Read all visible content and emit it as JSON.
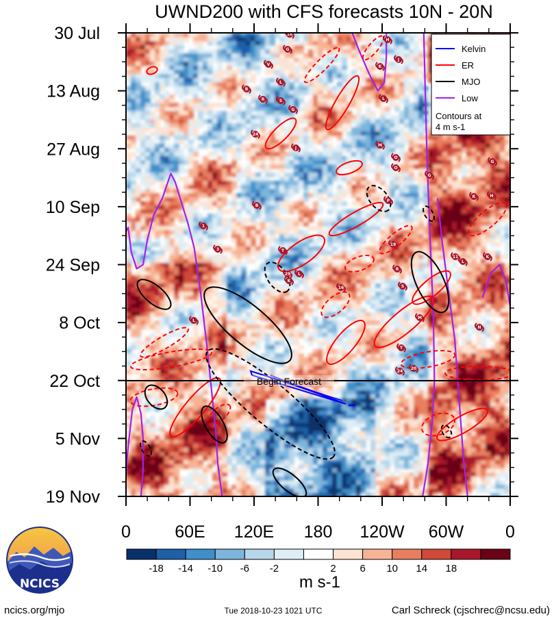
{
  "chart_data": {
    "type": "heatmap",
    "title": "UWND200 with CFS forecasts  10N - 20N",
    "y_axis": {
      "ticks": [
        "30 Jul",
        "13 Aug",
        "27 Aug",
        "10 Sep",
        "24 Sep",
        "8 Oct",
        "22 Oct",
        "5 Nov",
        "19 Nov"
      ],
      "range_days": [
        0,
        112
      ]
    },
    "x_axis": {
      "ticks": [
        "0",
        "60E",
        "120E",
        "180",
        "120W",
        "60W",
        "0"
      ],
      "range_deg": [
        0,
        360
      ]
    },
    "forecast_marker": {
      "label": "Begin Forecast",
      "date": "22 Oct"
    },
    "legend": {
      "placement": "top-right",
      "entries": [
        {
          "name": "Kelvin",
          "color": "#0000ff"
        },
        {
          "name": "ER",
          "color": "#ff0000"
        },
        {
          "name": "MJO",
          "color": "#000000"
        },
        {
          "name": "Low",
          "color": "#a020f0"
        }
      ],
      "note": "Contours at\n4 m s-1"
    },
    "colorbar": {
      "unit": "m s-1",
      "labels": [
        "-18",
        "-14",
        "-10",
        "-6",
        "-2",
        "2",
        "6",
        "10",
        "14",
        "18"
      ],
      "colors": [
        "#08306b",
        "#1f5fa8",
        "#3f8fc9",
        "#7db5dc",
        "#b8d6ea",
        "#dfeef6",
        "#ffffff",
        "#fde3d1",
        "#f7b495",
        "#e87f5f",
        "#cf4a38",
        "#a8172a",
        "#6b0216"
      ]
    },
    "contours": [
      {
        "type": "Low",
        "points": [
          [
            0,
            48
          ],
          [
            2,
            47
          ],
          [
            5,
            53
          ],
          [
            10,
            57
          ],
          [
            16,
            56
          ],
          [
            20,
            50
          ],
          [
            26,
            44
          ],
          [
            34,
            40
          ],
          [
            42,
            34
          ],
          [
            46,
            36
          ],
          [
            52,
            41
          ],
          [
            58,
            46
          ],
          [
            64,
            52
          ],
          [
            70,
            63
          ],
          [
            76,
            76
          ],
          [
            80,
            86
          ],
          [
            84,
            96
          ],
          [
            86,
            104
          ],
          [
            88,
            108
          ],
          [
            90,
            112
          ]
        ]
      },
      {
        "type": "Low",
        "points": [
          [
            -2,
            112
          ],
          [
            2,
            100
          ],
          [
            6,
            91
          ],
          [
            10,
            88
          ],
          [
            14,
            92
          ],
          [
            16,
            98
          ],
          [
            16,
            106
          ],
          [
            14,
            112
          ]
        ]
      },
      {
        "type": "Low",
        "points": [
          [
            212,
            0
          ],
          [
            218,
            4
          ],
          [
            228,
            10
          ],
          [
            236,
            14
          ],
          [
            242,
            12
          ],
          [
            244,
            6
          ],
          [
            244,
            0
          ]
        ]
      },
      {
        "type": "Low",
        "points": [
          [
            279,
            0
          ],
          [
            282,
            30
          ],
          [
            285,
            50
          ],
          [
            288,
            68
          ],
          [
            289,
            84
          ],
          [
            287,
            94
          ],
          [
            283,
            104
          ],
          [
            278,
            112
          ]
        ]
      },
      {
        "type": "Low",
        "points": [
          [
            292,
            40
          ],
          [
            296,
            50
          ],
          [
            302,
            62
          ],
          [
            308,
            74
          ],
          [
            312,
            88
          ],
          [
            316,
            102
          ],
          [
            320,
            112
          ]
        ]
      },
      {
        "type": "Low",
        "points": [
          [
            334,
            64
          ],
          [
            342,
            58
          ],
          [
            350,
            56
          ],
          [
            356,
            60
          ],
          [
            360,
            66
          ]
        ]
      }
    ],
    "storm_labels": [
      "16",
      "G",
      "V",
      "L",
      "B",
      "R",
      "S",
      "G",
      "24",
      "O",
      "B",
      "1",
      "3",
      "T",
      "29",
      "L",
      "K",
      "L",
      "H",
      "K",
      "J",
      "L",
      "M",
      "O",
      "G",
      "J",
      "H",
      "P",
      "19",
      "R",
      "S",
      "16",
      "M",
      "T",
      "24",
      "20",
      "11",
      "L",
      "K",
      "N",
      "G",
      "K"
    ]
  },
  "footer": {
    "logo_text": "NCICS",
    "url": "ncics.org/mjo",
    "timestamp": "Tue 2018-10-23 1021 UTC",
    "credit": "Carl Schreck (cjschrec@ncsu.edu)"
  }
}
